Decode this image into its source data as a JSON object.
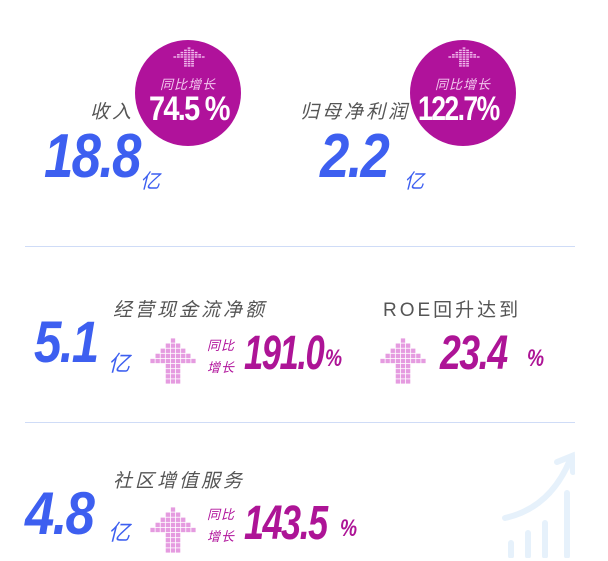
{
  "colors": {
    "primary_blue": "#3d5ff0",
    "magenta": "#b0129b",
    "arrow_pink": "#e0a0e0",
    "divider": "#cfdcf7"
  },
  "revenue": {
    "label": "收入",
    "value": "18.8",
    "unit": "亿",
    "growth_label": "同比增长",
    "growth": "74.5 %"
  },
  "net_profit": {
    "label": "归母净利润",
    "value": "2.2",
    "unit": "亿",
    "growth_label": "同比增长",
    "growth": "122.7%"
  },
  "cash_flow": {
    "label": "经营现金流净额",
    "value": "5.1",
    "unit": "亿",
    "growth_label_1": "同比",
    "growth_label_2": "增长",
    "growth": "191.0",
    "percent": "%"
  },
  "roe": {
    "label": "ROE回升达到",
    "value": "23.4",
    "percent": "%"
  },
  "community": {
    "label": "社区增值服务",
    "value": "4.8",
    "unit": "亿",
    "growth_label_1": "同比",
    "growth_label_2": "增长",
    "growth": "143.5",
    "percent": "%"
  },
  "icons": [
    "arrow-up-icon",
    "growth-chart-icon"
  ]
}
